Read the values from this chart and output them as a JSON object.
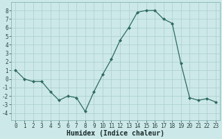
{
  "x": [
    0,
    1,
    2,
    3,
    4,
    5,
    6,
    7,
    8,
    9,
    10,
    11,
    12,
    13,
    14,
    15,
    16,
    17,
    18,
    19,
    20,
    21,
    22,
    23
  ],
  "y": [
    1,
    0,
    -0.3,
    -0.3,
    -1.5,
    -2.5,
    -2,
    -2.2,
    -3.8,
    -1.5,
    0.5,
    2.3,
    4.5,
    6,
    7.8,
    8,
    8,
    7,
    6.5,
    1.8,
    -2.2,
    -2.5,
    -2.3,
    -2.7
  ],
  "line_color": "#2d6b5e",
  "marker": "D",
  "marker_size": 2,
  "bg_color": "#cce8e8",
  "grid_color": "#aacece",
  "xlabel": "Humidex (Indice chaleur)",
  "ylim": [
    -4.8,
    9.0
  ],
  "xlim": [
    -0.5,
    23.5
  ],
  "yticks": [
    -4,
    -3,
    -2,
    -1,
    0,
    1,
    2,
    3,
    4,
    5,
    6,
    7,
    8
  ],
  "xticks": [
    0,
    1,
    2,
    3,
    4,
    5,
    6,
    7,
    8,
    9,
    10,
    11,
    12,
    13,
    14,
    15,
    16,
    17,
    18,
    19,
    20,
    21,
    22,
    23
  ],
  "tick_label_fontsize": 5.5,
  "xlabel_fontsize": 7.0,
  "xlabel_fontweight": "bold"
}
